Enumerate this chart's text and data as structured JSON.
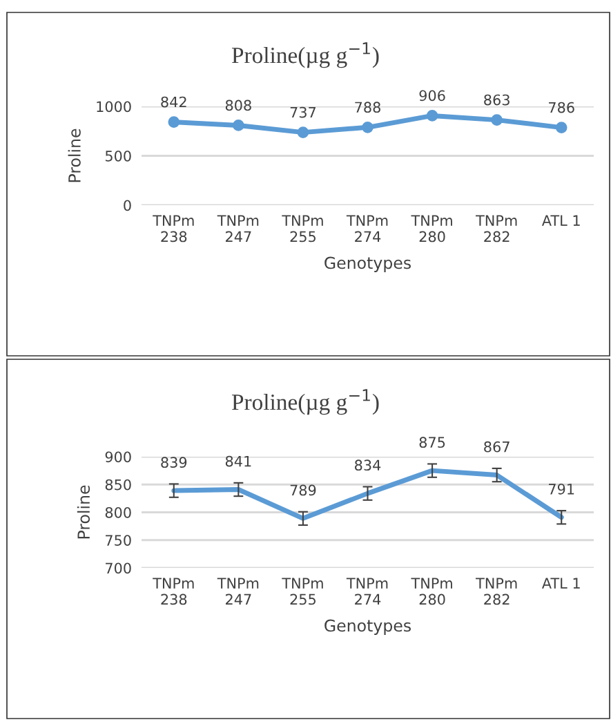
{
  "chart_data": [
    {
      "type": "line",
      "title": "Proline(µg g$^{−1}$)",
      "xlabel": "Genotypes",
      "ylabel": "Proline",
      "categories": [
        "TNPm\n238",
        "TNPm\n247",
        "TNPm\n255",
        "TNPm\n274",
        "TNPm\n280",
        "TNPm\n282",
        "ATL 1"
      ],
      "series": [
        {
          "color": "#5b9bd5",
          "values": [
            842,
            808,
            737,
            788,
            906,
            863,
            786
          ]
        }
      ],
      "ylim": [
        0,
        1000
      ],
      "yticks": [
        0,
        500,
        1000
      ],
      "grid": "y",
      "marker": "circle",
      "data_labels": true
    },
    {
      "type": "line",
      "title": "Proline(µg g$^{−1}$)",
      "xlabel": "Genotypes",
      "ylabel": "Proline",
      "categories": [
        "TNPm\n238",
        "TNPm\n247",
        "TNPm\n255",
        "TNPm\n274",
        "TNPm\n280",
        "TNPm\n282",
        "ATL 1"
      ],
      "series": [
        {
          "color": "#5b9bd5",
          "values": [
            839,
            841,
            789,
            834,
            875,
            867,
            791
          ],
          "errors": [
            12,
            12,
            12,
            12,
            12,
            12,
            12
          ]
        }
      ],
      "ylim": [
        700,
        900
      ],
      "yticks": [
        700,
        750,
        800,
        850,
        900
      ],
      "grid": "y",
      "marker": "none",
      "data_labels": true
    }
  ]
}
